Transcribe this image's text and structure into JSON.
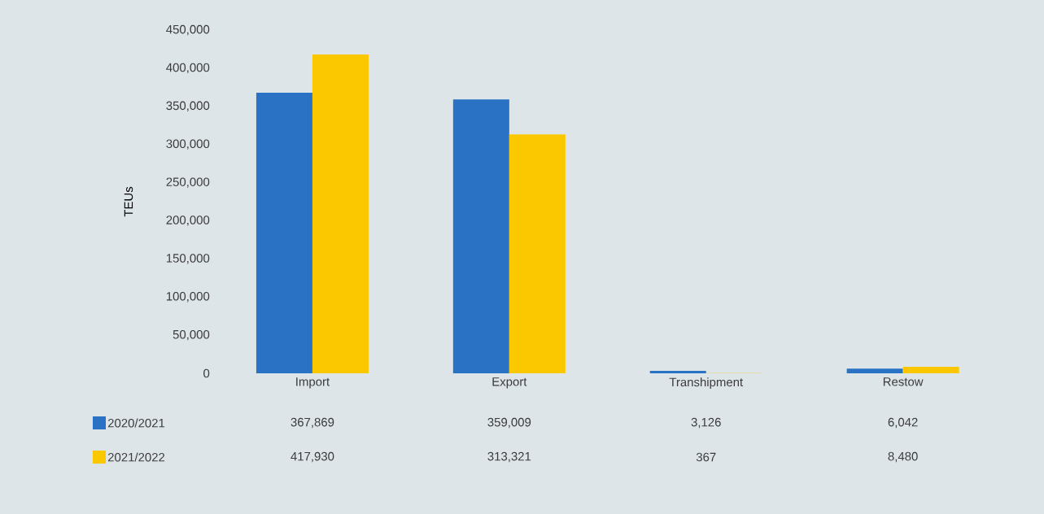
{
  "chart_data": {
    "type": "bar",
    "ylabel": "TEUs",
    "categories": [
      "Import",
      "Export",
      "Transhipment",
      "Restow"
    ],
    "series": [
      {
        "name": "2020/2021",
        "color": "#2a73c4",
        "values": [
          367869,
          359009,
          3126,
          6042
        ],
        "value_labels": [
          "367,869",
          "359,009",
          "3,126",
          "6,042"
        ]
      },
      {
        "name": "2021/2022",
        "color": "#fbc800",
        "values": [
          417930,
          313321,
          367,
          8480
        ],
        "value_labels": [
          "417,930",
          "313,321",
          "367",
          "8,480"
        ]
      }
    ],
    "ylim": [
      0,
      450000
    ],
    "yticks": [
      0,
      {
        "value": 50000,
        "label": "50,000"
      },
      {
        "value": 100000,
        "label": "100,000"
      },
      {
        "value": 150000,
        "label": "150,000"
      },
      {
        "value": 200000,
        "label": "200,000"
      },
      {
        "value": 250000,
        "label": "250,000"
      },
      {
        "value": 300000,
        "label": "300,000"
      },
      {
        "value": 350000,
        "label": "350,000"
      },
      {
        "value": 400000,
        "label": "400,000"
      },
      {
        "value": 450000,
        "label": "450,000"
      }
    ],
    "grid": false,
    "legend": "bottom left"
  }
}
